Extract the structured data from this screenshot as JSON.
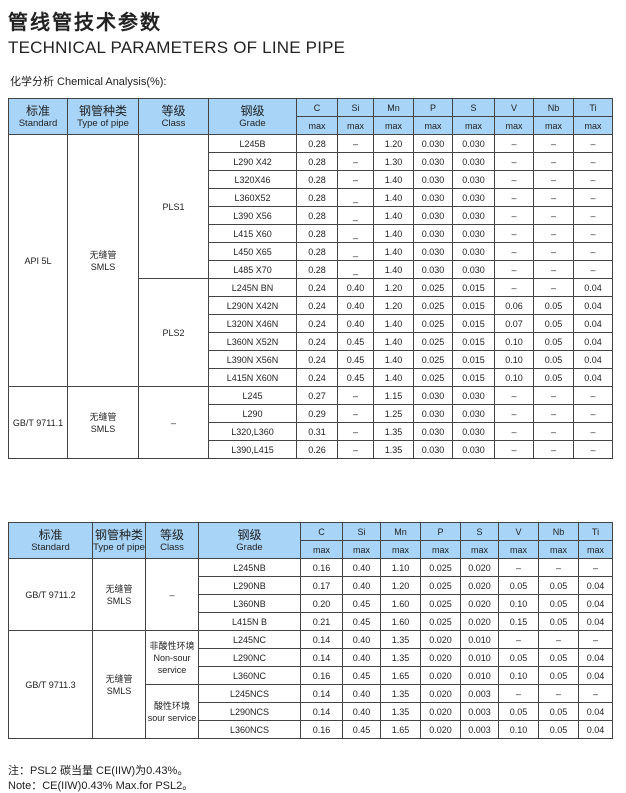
{
  "title_cn": "管线管技术参数",
  "title_en": "TECHNICAL PARAMETERS OF LINE PIPE",
  "section_label": "化学分析 Chemical Analysis(%):",
  "header": {
    "standard_cn": "标准",
    "standard_en": "Standard",
    "type_cn": "钢管种类",
    "type_en": "Type of pipe",
    "class_cn": "等级",
    "class_en": "Class",
    "grade_cn": "钢级",
    "grade_en": "Grade",
    "elements": [
      "C",
      "Si",
      "Mn",
      "P",
      "S",
      "V",
      "Nb",
      "Ti"
    ],
    "limit": "max"
  },
  "table1": [
    {
      "standard": "API 5L",
      "type": "无缝管\nSMLS",
      "classes": [
        {
          "class": "PLS1",
          "grades": [
            {
              "grade": "L245B",
              "values": [
                "0.28",
                "–",
                "1.20",
                "0.030",
                "0.030",
                "–",
                "–",
                "–"
              ]
            },
            {
              "grade": "L290 X42",
              "values": [
                "0.28",
                "–",
                "1.30",
                "0.030",
                "0.030",
                "–",
                "–",
                "–"
              ]
            },
            {
              "grade": "L320X46",
              "values": [
                "0.28",
                "–",
                "1.40",
                "0.030",
                "0.030",
                "–",
                "–",
                "–"
              ]
            },
            {
              "grade": "L360X52",
              "values": [
                "0.28",
                "_",
                "1.40",
                "0.030",
                "0.030",
                "–",
                "–",
                "–"
              ]
            },
            {
              "grade": "L390 X56",
              "values": [
                "0.28",
                "_",
                "1.40",
                "0.030",
                "0.030",
                "–",
                "–",
                "–"
              ]
            },
            {
              "grade": "L415 X60",
              "values": [
                "0.28",
                "_",
                "1.40",
                "0.030",
                "0.030",
                "–",
                "–",
                "–"
              ]
            },
            {
              "grade": "L450 X65",
              "values": [
                "0.28",
                "_",
                "1.40",
                "0.030",
                "0.030",
                "–",
                "–",
                "–"
              ]
            },
            {
              "grade": "L485 X70",
              "values": [
                "0.28",
                "_",
                "1.40",
                "0.030",
                "0.030",
                "–",
                "–",
                "–"
              ]
            }
          ]
        },
        {
          "class": "PLS2",
          "grades": [
            {
              "grade": "L245N BN",
              "values": [
                "0.24",
                "0.40",
                "1.20",
                "0.025",
                "0.015",
                "–",
                "–",
                "0.04"
              ]
            },
            {
              "grade": "L290N X42N",
              "values": [
                "0.24",
                "0.40",
                "1.20",
                "0.025",
                "0.015",
                "0.06",
                "0.05",
                "0.04"
              ]
            },
            {
              "grade": "L320N X46N",
              "values": [
                "0.24",
                "0.40",
                "1.40",
                "0.025",
                "0.015",
                "0.07",
                "0.05",
                "0.04"
              ]
            },
            {
              "grade": "L360N X52N",
              "values": [
                "0.24",
                "0.45",
                "1.40",
                "0.025",
                "0.015",
                "0.10",
                "0.05",
                "0.04"
              ]
            },
            {
              "grade": "L390N X56N",
              "values": [
                "0.24",
                "0.45",
                "1.40",
                "0.025",
                "0.015",
                "0.10",
                "0.05",
                "0.04"
              ]
            },
            {
              "grade": "L415N X60N",
              "values": [
                "0.24",
                "0.45",
                "1.40",
                "0.025",
                "0.015",
                "0.10",
                "0.05",
                "0.04"
              ]
            }
          ]
        }
      ]
    },
    {
      "standard": "GB/T 9711.1",
      "type": "无缝管\nSMLS",
      "classes": [
        {
          "class": "–",
          "grades": [
            {
              "grade": "L245",
              "values": [
                "0.27",
                "–",
                "1.15",
                "0.030",
                "0.030",
                "–",
                "–",
                "–"
              ]
            },
            {
              "grade": "L290",
              "values": [
                "0.29",
                "–",
                "1.25",
                "0.030",
                "0.030",
                "–",
                "–",
                "–"
              ]
            },
            {
              "grade": "L320,L360",
              "values": [
                "0.31",
                "–",
                "1.35",
                "0.030",
                "0.030",
                "–",
                "–",
                "–"
              ]
            },
            {
              "grade": "L390,L415",
              "values": [
                "0.26",
                "–",
                "1.35",
                "0.030",
                "0.030",
                "–",
                "–",
                "–"
              ]
            }
          ]
        }
      ]
    }
  ],
  "table2": [
    {
      "standard": "GB/T 9711.2",
      "type": "无缝管\nSMLS",
      "classes": [
        {
          "class": "–",
          "grades": [
            {
              "grade": "L245NB",
              "values": [
                "0.16",
                "0.40",
                "1.10",
                "0.025",
                "0.020",
                "–",
                "–",
                "–"
              ]
            },
            {
              "grade": "L290NB",
              "values": [
                "0.17",
                "0.40",
                "1.20",
                "0.025",
                "0.020",
                "0.05",
                "0.05",
                "0.04"
              ]
            },
            {
              "grade": "L360NB",
              "values": [
                "0.20",
                "0.45",
                "1.60",
                "0.025",
                "0.020",
                "0.10",
                "0.05",
                "0.04"
              ]
            },
            {
              "grade": "L415N B",
              "values": [
                "0.21",
                "0.45",
                "1.60",
                "0.025",
                "0.020",
                "0.15",
                "0.05",
                "0.04"
              ]
            }
          ]
        }
      ]
    },
    {
      "standard": "GB/T 9711.3",
      "type": "无缝管\nSMLS",
      "classes": [
        {
          "class": "非酸性环境\nNon-sour\nservice",
          "grades": [
            {
              "grade": "L245NC",
              "values": [
                "0.14",
                "0.40",
                "1.35",
                "0.020",
                "0.010",
                "–",
                "–",
                "–"
              ]
            },
            {
              "grade": "L290NC",
              "values": [
                "0.14",
                "0.40",
                "1.35",
                "0.020",
                "0.010",
                "0.05",
                "0.05",
                "0.04"
              ]
            },
            {
              "grade": "L360NC",
              "values": [
                "0.16",
                "0.45",
                "1.65",
                "0.020",
                "0.010",
                "0.10",
                "0.05",
                "0.04"
              ]
            }
          ]
        },
        {
          "class": "酸性环境\nsour service",
          "grades": [
            {
              "grade": "L245NCS",
              "values": [
                "0.14",
                "0.40",
                "1.35",
                "0.020",
                "0.003",
                "–",
                "–",
                "–"
              ]
            },
            {
              "grade": "L290NCS",
              "values": [
                "0.14",
                "0.40",
                "1.35",
                "0.020",
                "0.003",
                "0.05",
                "0.05",
                "0.04"
              ]
            },
            {
              "grade": "L360NCS",
              "values": [
                "0.16",
                "0.45",
                "1.65",
                "0.020",
                "0.003",
                "0.10",
                "0.05",
                "0.04"
              ]
            }
          ]
        }
      ]
    }
  ],
  "notes": {
    "cn": "注：PSL2 碳当量 CE(IIW)为0.43%。",
    "en": "Note：CE(IIW)0.43% Max.for PSL2。"
  },
  "colors": {
    "header_bg": "#a8d4f7",
    "border": "#444444"
  }
}
